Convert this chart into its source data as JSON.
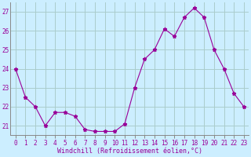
{
  "hours": [
    0,
    1,
    2,
    3,
    4,
    5,
    6,
    7,
    8,
    9,
    10,
    11,
    12,
    13,
    14,
    15,
    16,
    17,
    18,
    19,
    20,
    21,
    22,
    23
  ],
  "values": [
    24.0,
    22.5,
    22.0,
    21.0,
    21.7,
    21.7,
    21.5,
    20.8,
    20.7,
    20.7,
    20.7,
    21.1,
    23.0,
    24.5,
    25.0,
    26.1,
    25.7,
    26.7,
    27.2,
    26.7,
    25.0,
    24.0,
    22.7,
    22.0
  ],
  "line_color": "#990099",
  "marker": "*",
  "marker_size": 3.5,
  "bg_color": "#cceeff",
  "grid_color": "#aacccc",
  "xlabel": "Windchill (Refroidissement éolien,°C)",
  "xlabel_color": "#990099",
  "tick_color": "#990099",
  "label_color": "#990099",
  "ylim": [
    20.5,
    27.5
  ],
  "yticks": [
    21,
    22,
    23,
    24,
    25,
    26,
    27
  ],
  "xlim": [
    -0.5,
    23.5
  ],
  "xticks": [
    0,
    1,
    2,
    3,
    4,
    5,
    6,
    7,
    8,
    9,
    10,
    11,
    12,
    13,
    14,
    15,
    16,
    17,
    18,
    19,
    20,
    21,
    22,
    23
  ],
  "spine_color": "#888888"
}
